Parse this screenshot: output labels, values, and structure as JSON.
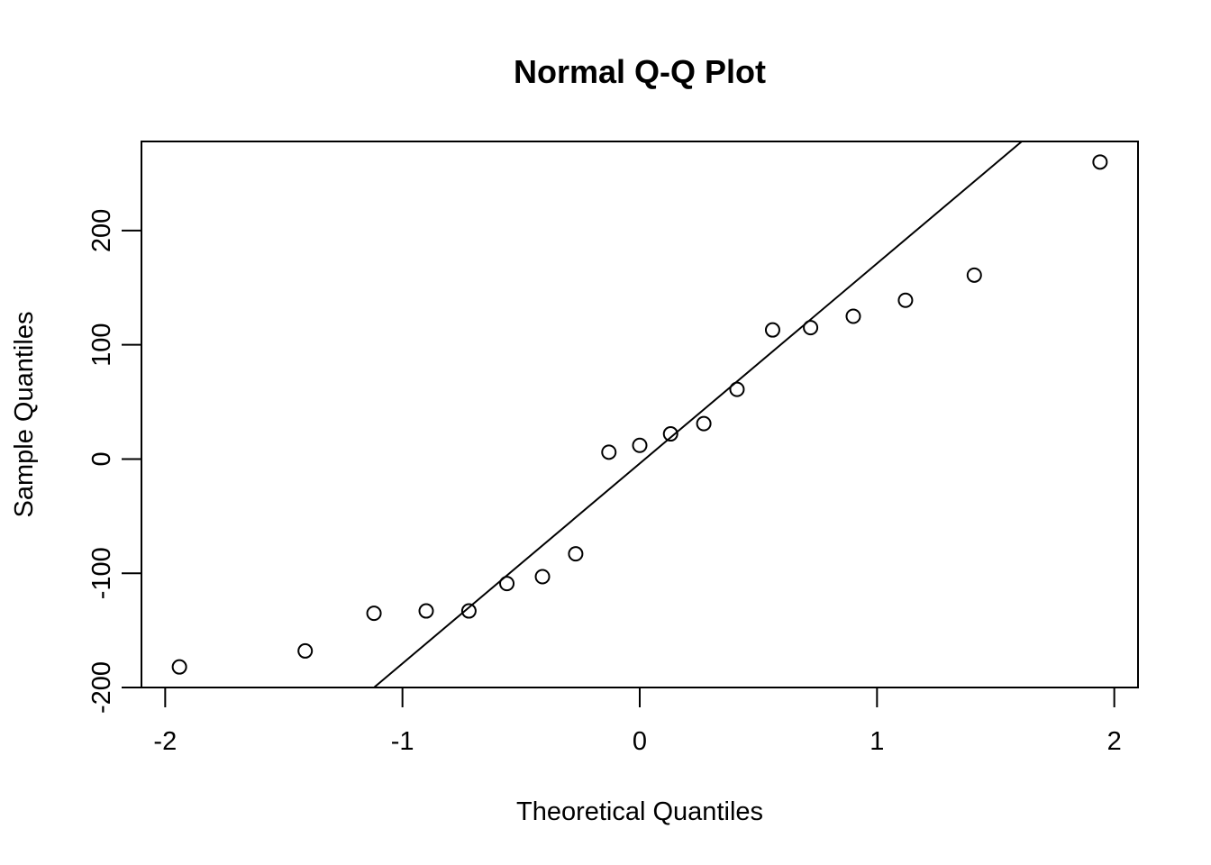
{
  "chart_data": {
    "type": "scatter",
    "title": "Normal Q-Q Plot",
    "xlabel": "Theoretical Quantiles",
    "ylabel": "Sample Quantiles",
    "xlim": [
      -2.1,
      2.1
    ],
    "ylim": [
      -200,
      278
    ],
    "x_ticks": [
      -2,
      -1,
      0,
      1,
      2
    ],
    "x_tick_labels": [
      "-2",
      "-1",
      "0",
      "1",
      "2"
    ],
    "y_ticks": [
      -200,
      -100,
      0,
      100,
      200
    ],
    "y_tick_labels": [
      "-200",
      "-100",
      "0",
      "100",
      "200"
    ],
    "grid": false,
    "legend": "none",
    "points": [
      {
        "x": -1.94,
        "y": -182
      },
      {
        "x": -1.41,
        "y": -168
      },
      {
        "x": -1.12,
        "y": -135
      },
      {
        "x": -0.9,
        "y": -133
      },
      {
        "x": -0.72,
        "y": -133
      },
      {
        "x": -0.56,
        "y": -109
      },
      {
        "x": -0.41,
        "y": -103
      },
      {
        "x": -0.27,
        "y": -83
      },
      {
        "x": -0.13,
        "y": 6
      },
      {
        "x": 0.0,
        "y": 12
      },
      {
        "x": 0.13,
        "y": 22
      },
      {
        "x": 0.27,
        "y": 31
      },
      {
        "x": 0.41,
        "y": 61
      },
      {
        "x": 0.56,
        "y": 113
      },
      {
        "x": 0.72,
        "y": 115
      },
      {
        "x": 0.9,
        "y": 125
      },
      {
        "x": 1.12,
        "y": 139
      },
      {
        "x": 1.41,
        "y": 161
      },
      {
        "x": 1.94,
        "y": 260
      }
    ],
    "reference_line": {
      "x1": -1.12,
      "y1": -200,
      "x2": 1.61,
      "y2": 278
    },
    "colors": {
      "points": "#000000",
      "line": "#000000",
      "frame": "#000000",
      "background": "#ffffff"
    }
  }
}
